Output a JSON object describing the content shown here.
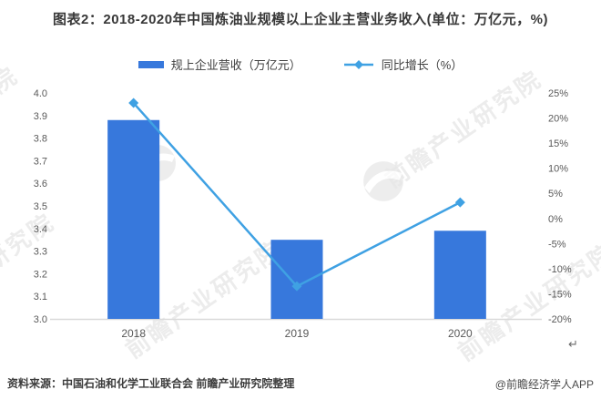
{
  "title": "图表2：2018-2020年中国炼油业规模以上企业主营业务收入(单位：万亿元，%)",
  "legend": {
    "items": [
      {
        "label": "规上企业营收（万亿元）",
        "type": "bar"
      },
      {
        "label": "同比增长（%）",
        "type": "line"
      }
    ]
  },
  "chart_data": {
    "type": "bar+line",
    "categories": [
      "2018",
      "2019",
      "2020"
    ],
    "series": [
      {
        "name": "规上企业营收（万亿元）",
        "type": "bar",
        "axis": "left",
        "values": [
          3.88,
          3.35,
          3.39
        ]
      },
      {
        "name": "同比增长（%）",
        "type": "line",
        "axis": "right",
        "marker": "diamond",
        "values": [
          23,
          -13.5,
          3.2
        ]
      }
    ],
    "left_axis": {
      "min": 3.0,
      "max": 4.0,
      "step": 0.1
    },
    "right_axis": {
      "min": -20,
      "max": 25,
      "step": 5,
      "suffix": "%"
    },
    "grid": false,
    "legend_position": "top"
  },
  "footer": {
    "source": "资料来源：中国石油和化学工业联合会 前瞻产业研究院整理",
    "credit": "@前瞻经济学人APP"
  },
  "watermark": {
    "text": "前瞻产业研究院"
  },
  "artifacts": {
    "return_mark": "↵"
  },
  "colors": {
    "bar": "#3778DC",
    "line": "#3FA1E3",
    "axis_line": "#D9D9D9",
    "tick_label": "#595959",
    "title": "#383838",
    "footer": "#3D3D3D",
    "watermark": "#ECECEC"
  }
}
